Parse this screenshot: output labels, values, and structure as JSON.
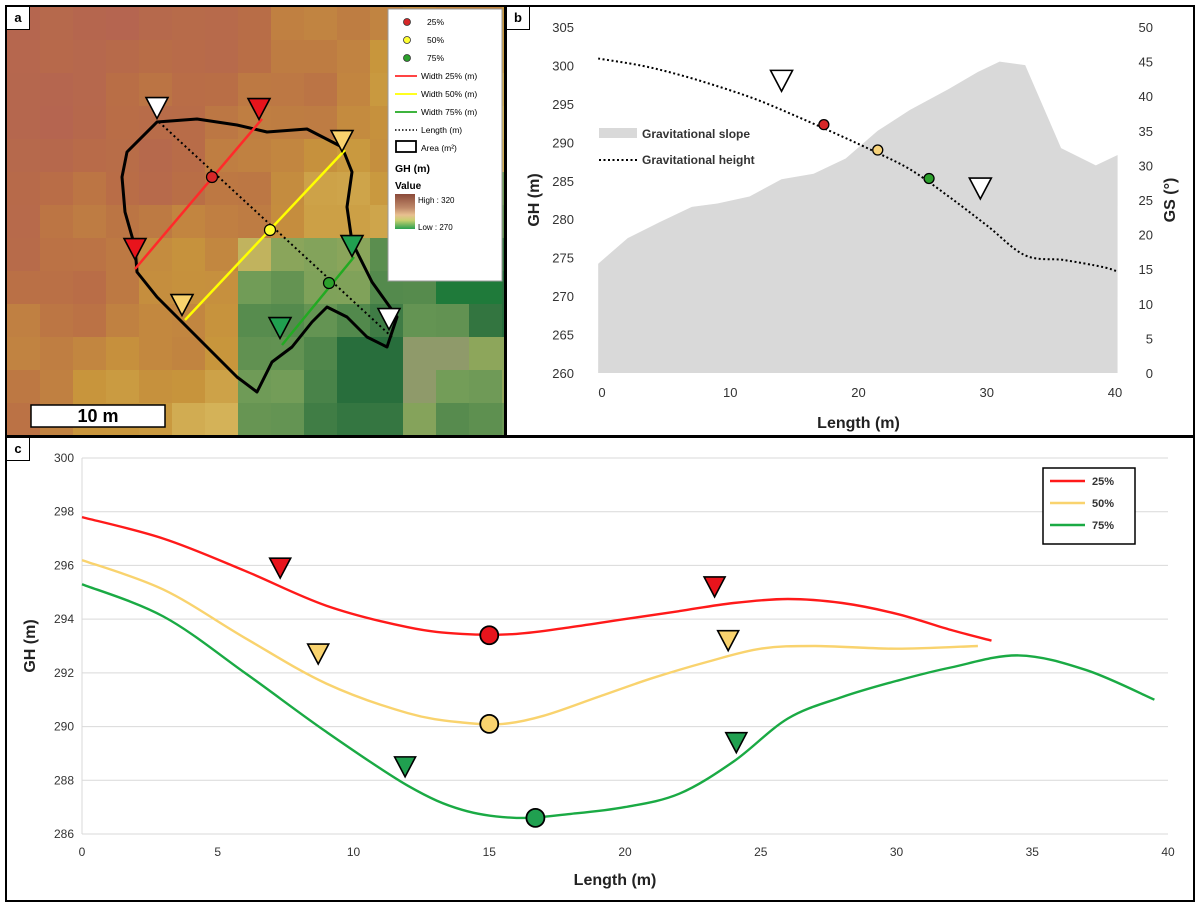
{
  "panel_labels": {
    "a": "a",
    "b": "b",
    "c": "c"
  },
  "chart_data": [
    {
      "panel": "a",
      "type": "map",
      "scale_bar": "10 m",
      "legend": {
        "points": [
          {
            "label": "25%",
            "color": "#d62728"
          },
          {
            "label": "50%",
            "color": "#ffff33"
          },
          {
            "label": "75%",
            "color": "#2ca02c"
          }
        ],
        "lines": [
          {
            "label": "Width 25% (m)",
            "color": "#ff2a2a"
          },
          {
            "label": "Width 50% (m)",
            "color": "#ffff00"
          },
          {
            "label": "Width 75% (m)",
            "color": "#22aa22"
          },
          {
            "label": "Length (m)",
            "color": "#000000"
          }
        ],
        "area": "Area (m²)",
        "gh_title": "GH (m)",
        "value_title": "Value",
        "high": "High : 320",
        "low": "Low : 270"
      }
    },
    {
      "panel": "b",
      "type": "area+line",
      "xlabel": "Length (m)",
      "ylabel": "GH (m)",
      "y2label": "GS (°)",
      "xlim": [
        0,
        40
      ],
      "ylim": [
        260,
        305
      ],
      "y2lim": [
        0,
        50
      ],
      "xticks": [
        0,
        10,
        20,
        30,
        40
      ],
      "yticks": [
        260,
        265,
        270,
        275,
        280,
        285,
        290,
        295,
        300,
        305
      ],
      "y2ticks": [
        0,
        5,
        10,
        15,
        20,
        25,
        30,
        35,
        40,
        45,
        50
      ],
      "series": [
        {
          "name": "Gravitational slope",
          "axis": "y2",
          "kind": "area",
          "color": "#d9d9d9",
          "x": [
            -0.3,
            2,
            4.5,
            7,
            9,
            11.5,
            14,
            16.5,
            19,
            21.5,
            24,
            27,
            29.3,
            31,
            33,
            35.8,
            38.5,
            40.2
          ],
          "y": [
            15.8,
            19.5,
            21.8,
            24,
            24.5,
            25.5,
            28,
            28.8,
            31,
            35,
            38,
            41,
            43.5,
            45,
            44.5,
            32.5,
            30,
            31.5
          ]
        },
        {
          "name": "Gravitational height",
          "axis": "y",
          "kind": "line",
          "dash": true,
          "color": "#000000",
          "x": [
            -0.3,
            3,
            6,
            9,
            12,
            15,
            18,
            21,
            24,
            27,
            30,
            33,
            36,
            39,
            40.2
          ],
          "y": [
            300.9,
            300.0,
            298.8,
            297.3,
            295.6,
            293.5,
            291.3,
            289.0,
            286.5,
            283.0,
            279.2,
            275.3,
            274.7,
            273.8,
            273.2
          ]
        }
      ],
      "markers": [
        {
          "type": "triangle",
          "fill": "#ffffff",
          "x": 14,
          "y": 298
        },
        {
          "type": "triangle",
          "fill": "#ffffff",
          "x": 29.5,
          "y": 284
        },
        {
          "type": "circle",
          "fill": "#d62728",
          "x": 17.3,
          "y": 292.3
        },
        {
          "type": "circle",
          "fill": "#f6d27a",
          "x": 21.5,
          "y": 289
        },
        {
          "type": "circle",
          "fill": "#2ca02c",
          "x": 25.5,
          "y": 285.3
        }
      ]
    },
    {
      "panel": "c",
      "type": "line",
      "xlabel": "Length (m)",
      "ylabel": "GH (m)",
      "xlim": [
        0,
        40
      ],
      "ylim": [
        286,
        300
      ],
      "xticks": [
        0,
        5,
        10,
        15,
        20,
        25,
        30,
        35,
        40
      ],
      "yticks": [
        286,
        288,
        290,
        292,
        294,
        296,
        298,
        300
      ],
      "legend_position": "top-right",
      "series": [
        {
          "name": "25%",
          "color": "#ff1a1a",
          "x": [
            0,
            3,
            6,
            9,
            12,
            14,
            16,
            18,
            20,
            22,
            24,
            26,
            28,
            30,
            32,
            33.5
          ],
          "y": [
            297.8,
            297.0,
            295.8,
            294.5,
            293.7,
            293.45,
            293.45,
            293.7,
            294.0,
            294.3,
            294.6,
            294.75,
            294.6,
            294.2,
            293.6,
            293.2
          ]
        },
        {
          "name": "50%",
          "color": "#f9d36e",
          "x": [
            0,
            3,
            6,
            9,
            12,
            14,
            15.5,
            17,
            19,
            21,
            23,
            25,
            27,
            30,
            33
          ],
          "y": [
            296.2,
            295.1,
            293.3,
            291.6,
            290.5,
            290.15,
            290.1,
            290.4,
            291.1,
            291.8,
            292.4,
            292.9,
            293.0,
            292.9,
            293.0
          ]
        },
        {
          "name": "75%",
          "color": "#1aaa44",
          "x": [
            0,
            3,
            6,
            9,
            12,
            14,
            16,
            18,
            20,
            22,
            24,
            26,
            28,
            30,
            32,
            34.5,
            37,
            39.5
          ],
          "y": [
            295.3,
            294.1,
            292.0,
            289.8,
            287.8,
            286.9,
            286.6,
            286.75,
            287.0,
            287.5,
            288.7,
            290.3,
            291.1,
            291.7,
            292.2,
            292.65,
            292.1,
            291.0
          ]
        }
      ],
      "markers": [
        {
          "type": "triangle",
          "fill": "#e8141c",
          "x": 7.3,
          "y": 295.9
        },
        {
          "type": "triangle",
          "fill": "#e8141c",
          "x": 23.3,
          "y": 295.2
        },
        {
          "type": "triangle",
          "fill": "#f9d36e",
          "x": 8.7,
          "y": 292.7
        },
        {
          "type": "triangle",
          "fill": "#f9d36e",
          "x": 23.8,
          "y": 293.2
        },
        {
          "type": "triangle",
          "fill": "#20a050",
          "x": 11.9,
          "y": 288.5
        },
        {
          "type": "triangle",
          "fill": "#20a050",
          "x": 24.1,
          "y": 289.4
        },
        {
          "type": "circle",
          "fill": "#e8141c",
          "x": 15.0,
          "y": 293.4
        },
        {
          "type": "circle",
          "fill": "#f9d36e",
          "x": 15.0,
          "y": 290.1
        },
        {
          "type": "circle",
          "fill": "#20a050",
          "x": 16.7,
          "y": 286.6
        }
      ]
    }
  ]
}
